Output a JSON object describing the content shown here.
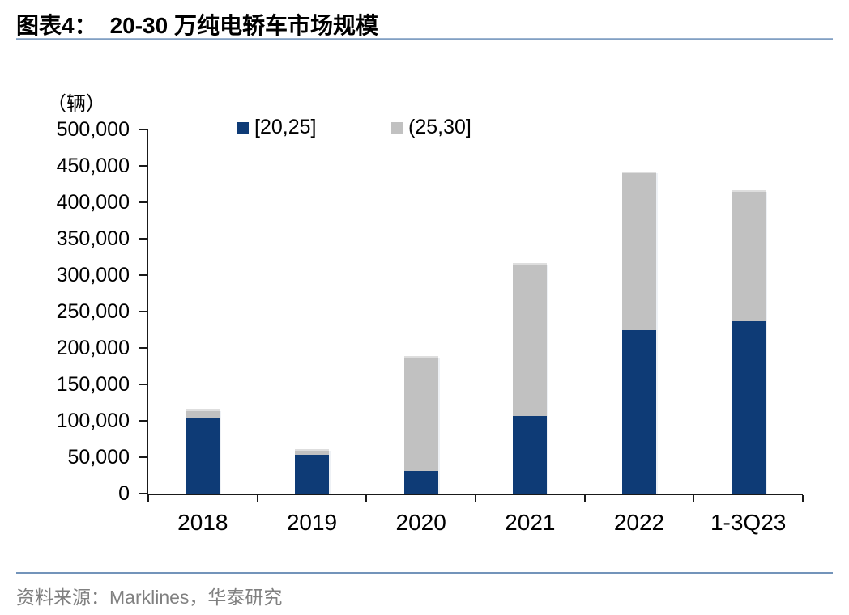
{
  "title": {
    "prefix": "图表4：",
    "text": "20-30 万纯电轿车市场规模"
  },
  "y_axis": {
    "unit_label": "（辆）"
  },
  "source": {
    "text": "资料来源：Marklines，华泰研究"
  },
  "colors": {
    "series_blue": "#0e3b76",
    "series_gray": "#c1c1c1",
    "axis": "#1a1a1a",
    "rule_blue": "#7394ba",
    "source_gray": "#808080"
  },
  "chart_data": {
    "type": "bar",
    "stacked": true,
    "title": "20-30 万纯电轿车市场规模",
    "ylabel": "（辆）",
    "categories": [
      "2018",
      "2019",
      "2020",
      "2021",
      "2022",
      "1-3Q23"
    ],
    "series": [
      {
        "name": "[20,25]",
        "color": "#0e3b76",
        "values": [
          104000,
          53000,
          31000,
          107000,
          224000,
          237000
        ]
      },
      {
        "name": "(25,30]",
        "color": "#c1c1c1",
        "values": [
          9000,
          6000,
          156000,
          207000,
          216000,
          177000
        ]
      }
    ],
    "ylim": [
      0,
      500000
    ],
    "ytick_step": 50000,
    "grid": false,
    "legend_position": "top"
  }
}
